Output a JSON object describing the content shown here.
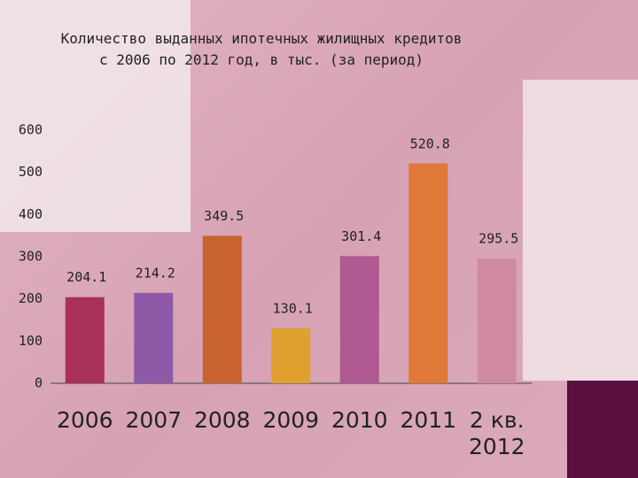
{
  "chart_data": {
    "type": "bar",
    "title": "Количество выданных ипотечных жилищных кредитов с 2006 по 2012 год, в тыс. (за период)",
    "categories": [
      "2006",
      "2007",
      "2008",
      "2009",
      "2010",
      "2011",
      "2 кв. 2012"
    ],
    "values": [
      204.1,
      214.2,
      349.5,
      130.1,
      301.4,
      520.8,
      295.5
    ],
    "colors": [
      "#a8305a",
      "#8e5aa8",
      "#c8622f",
      "#e0a030",
      "#b05890",
      "#e07838",
      "#d08aa0"
    ],
    "ylim": [
      0,
      600
    ],
    "yticks": [
      0,
      100,
      200,
      300,
      400,
      500,
      600
    ]
  }
}
